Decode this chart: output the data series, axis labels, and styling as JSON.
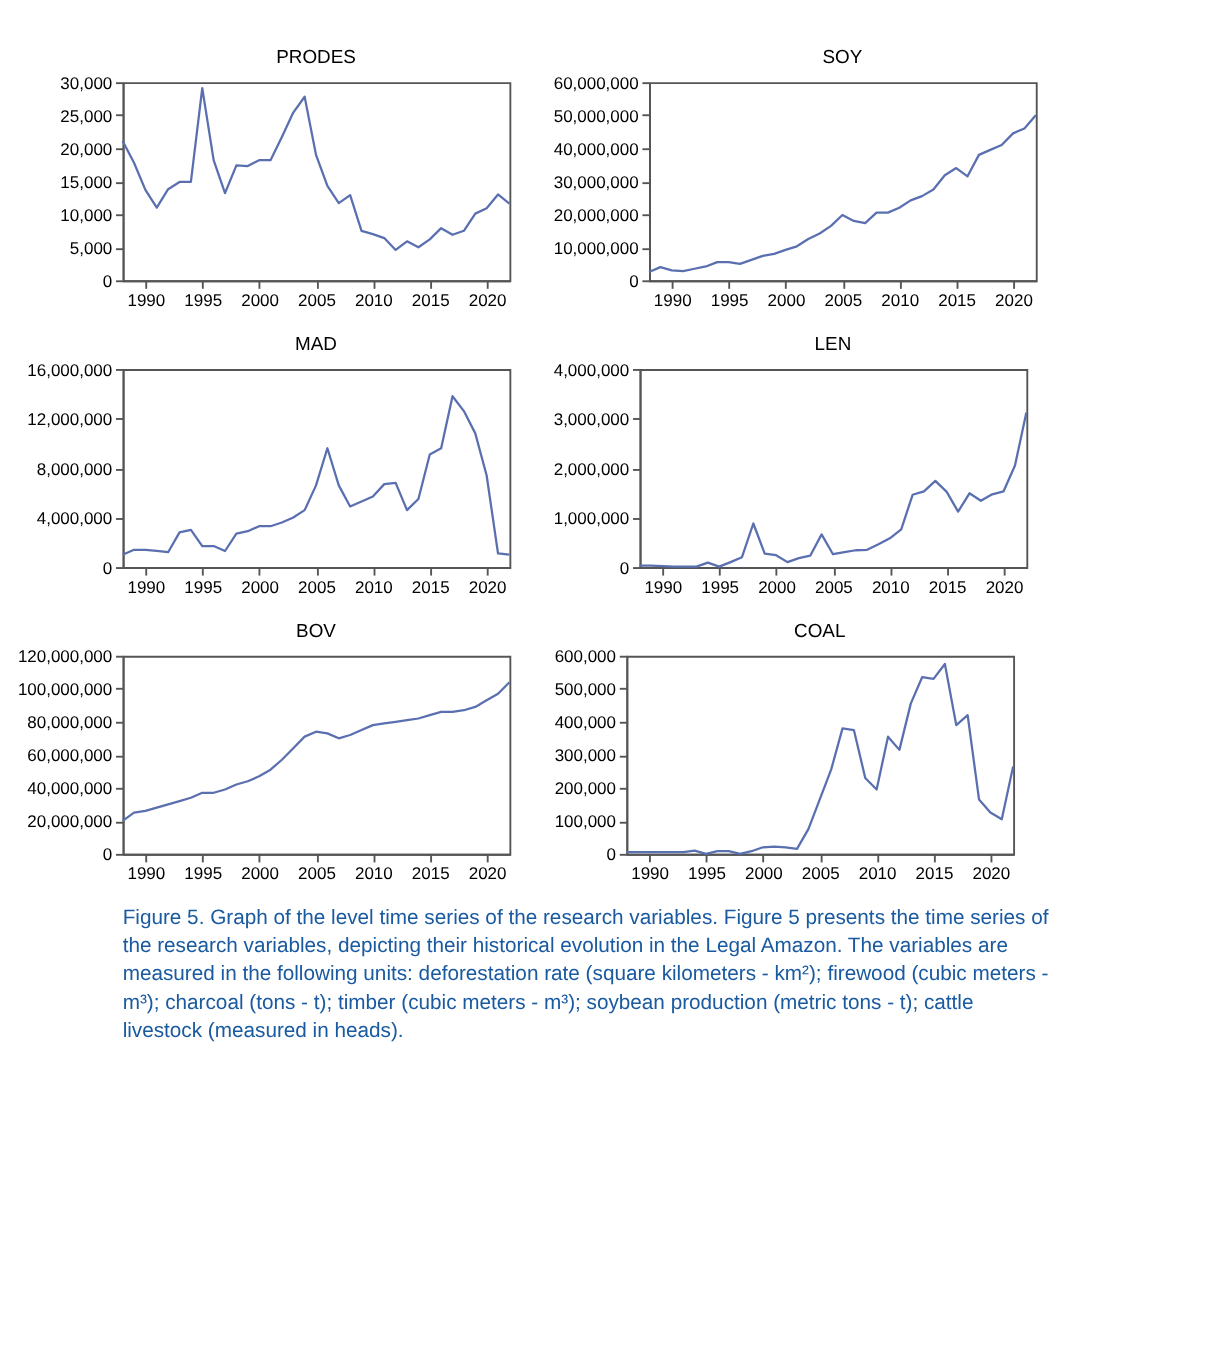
{
  "chart_data": [
    {
      "type": "line",
      "title": "PRODES",
      "color": "#5a6fb0",
      "x": [
        1988,
        1989,
        1990,
        1991,
        1992,
        1993,
        1994,
        1995,
        1996,
        1997,
        1998,
        1999,
        2000,
        2001,
        2002,
        2003,
        2004,
        2005,
        2006,
        2007,
        2008,
        2009,
        2010,
        2011,
        2012,
        2013,
        2014,
        2015,
        2016,
        2017,
        2018,
        2019,
        2020,
        2021,
        2022
      ],
      "values": [
        21100,
        17800,
        13700,
        11000,
        13800,
        14900,
        14900,
        29100,
        18200,
        13200,
        17400,
        17300,
        18200,
        18200,
        21700,
        25400,
        27800,
        19000,
        14300,
        11700,
        12900,
        7500,
        7000,
        6400,
        4600,
        5900,
        5000,
        6200,
        7900,
        6900,
        7500,
        10100,
        10900,
        13000,
        11600
      ],
      "xlim": [
        1988,
        2022
      ],
      "xticks": [
        1990,
        1995,
        2000,
        2005,
        2010,
        2015,
        2020
      ],
      "ylim": [
        0,
        30000
      ],
      "yticks": [
        {
          "value": 0,
          "label": "0"
        },
        {
          "value": 5000,
          "label": "5,000"
        },
        {
          "value": 10000,
          "label": "10,000"
        },
        {
          "value": 15000,
          "label": "15,000"
        },
        {
          "value": 20000,
          "label": "20,000"
        },
        {
          "value": 25000,
          "label": "25,000"
        },
        {
          "value": 30000,
          "label": "30,000"
        }
      ],
      "grid": false
    },
    {
      "type": "line",
      "title": "SOY",
      "color": "#5a6fb0",
      "x": [
        1988,
        1989,
        1990,
        1991,
        1992,
        1993,
        1994,
        1995,
        1996,
        1997,
        1998,
        1999,
        2000,
        2001,
        2002,
        2003,
        2004,
        2005,
        2006,
        2007,
        2008,
        2009,
        2010,
        2011,
        2012,
        2013,
        2014,
        2015,
        2016,
        2017,
        2018,
        2019,
        2020,
        2021,
        2022
      ],
      "values": [
        2500000,
        4000000,
        3000000,
        2800000,
        3500000,
        4200000,
        5500000,
        5500000,
        5000000,
        6200000,
        7400000,
        8000000,
        9200000,
        10300000,
        12500000,
        14200000,
        16500000,
        19800000,
        18000000,
        17300000,
        20500000,
        20500000,
        22000000,
        24200000,
        25500000,
        27500000,
        31800000,
        34000000,
        31500000,
        38000000,
        39500000,
        41000000,
        44500000,
        46000000,
        50000000
      ],
      "xlim": [
        1988,
        2022
      ],
      "xticks": [
        1990,
        1995,
        2000,
        2005,
        2010,
        2015,
        2020
      ],
      "ylim": [
        0,
        60000000
      ],
      "yticks": [
        {
          "value": 0,
          "label": "0"
        },
        {
          "value": 10000000,
          "label": "10,000,000"
        },
        {
          "value": 20000000,
          "label": "20,000,000"
        },
        {
          "value": 30000000,
          "label": "30,000,000"
        },
        {
          "value": 40000000,
          "label": "40,000,000"
        },
        {
          "value": 50000000,
          "label": "50,000,000"
        },
        {
          "value": 60000000,
          "label": "60,000,000"
        }
      ],
      "grid": false
    },
    {
      "type": "line",
      "title": "MAD",
      "color": "#5a6fb0",
      "x": [
        1988,
        1989,
        1990,
        1991,
        1992,
        1993,
        1994,
        1995,
        1996,
        1997,
        1998,
        1999,
        2000,
        2001,
        2002,
        2003,
        2004,
        2005,
        2006,
        2007,
        2008,
        2009,
        2010,
        2011,
        2012,
        2013,
        2014,
        2015,
        2016,
        2017,
        2018,
        2019,
        2020,
        2021,
        2022
      ],
      "values": [
        1000000,
        1400000,
        1400000,
        1300000,
        1200000,
        2800000,
        3000000,
        1700000,
        1700000,
        1300000,
        2700000,
        2900000,
        3300000,
        3300000,
        3600000,
        4000000,
        4600000,
        6600000,
        9600000,
        6600000,
        4900000,
        5300000,
        5700000,
        6700000,
        6800000,
        4600000,
        5500000,
        9100000,
        9600000,
        13800000,
        12600000,
        10800000,
        7400000,
        1100000,
        1000000
      ],
      "xlim": [
        1988,
        2022
      ],
      "xticks": [
        1990,
        1995,
        2000,
        2005,
        2010,
        2015,
        2020
      ],
      "ylim": [
        0,
        16000000
      ],
      "yticks": [
        {
          "value": 0,
          "label": "0"
        },
        {
          "value": 4000000,
          "label": "4,000,000"
        },
        {
          "value": 8000000,
          "label": "8,000,000"
        },
        {
          "value": 12000000,
          "label": "12,000,000"
        },
        {
          "value": 16000000,
          "label": "16,000,000"
        }
      ],
      "grid": false
    },
    {
      "type": "line",
      "title": "LEN",
      "color": "#5a6fb0",
      "x": [
        1988,
        1989,
        1990,
        1991,
        1992,
        1993,
        1994,
        1995,
        1996,
        1997,
        1998,
        1999,
        2000,
        2001,
        2002,
        2003,
        2004,
        2005,
        2006,
        2007,
        2008,
        2009,
        2010,
        2011,
        2012,
        2013,
        2014,
        2015,
        2016,
        2017,
        2018,
        2019,
        2020,
        2021,
        2022
      ],
      "values": [
        30000,
        30000,
        20000,
        10000,
        10000,
        10000,
        90000,
        10000,
        100000,
        200000,
        880000,
        270000,
        240000,
        100000,
        180000,
        230000,
        660000,
        260000,
        300000,
        340000,
        350000,
        460000,
        580000,
        760000,
        1460000,
        1530000,
        1740000,
        1520000,
        1120000,
        1490000,
        1340000,
        1470000,
        1530000,
        2050000,
        3120000
      ],
      "xlim": [
        1988,
        2022
      ],
      "xticks": [
        1990,
        1995,
        2000,
        2005,
        2010,
        2015,
        2020
      ],
      "ylim": [
        0,
        4000000
      ],
      "yticks": [
        {
          "value": 0,
          "label": "0"
        },
        {
          "value": 1000000,
          "label": "1,000,000"
        },
        {
          "value": 2000000,
          "label": "2,000,000"
        },
        {
          "value": 3000000,
          "label": "3,000,000"
        },
        {
          "value": 4000000,
          "label": "4,000,000"
        }
      ],
      "grid": false
    },
    {
      "type": "line",
      "title": "BOV",
      "color": "#5a6fb0",
      "x": [
        1988,
        1989,
        1990,
        1991,
        1992,
        1993,
        1994,
        1995,
        1996,
        1997,
        1998,
        1999,
        2000,
        2001,
        2002,
        2003,
        2004,
        2005,
        2006,
        2007,
        2008,
        2009,
        2010,
        2011,
        2012,
        2013,
        2014,
        2015,
        2016,
        2017,
        2018,
        2019,
        2020,
        2021,
        2022
      ],
      "values": [
        20000000,
        25000000,
        26000000,
        28000000,
        30000000,
        32000000,
        34000000,
        37000000,
        37000000,
        39000000,
        42000000,
        44000000,
        47000000,
        51000000,
        57000000,
        64000000,
        71000000,
        74000000,
        73000000,
        70000000,
        72000000,
        75000000,
        78000000,
        79000000,
        80000000,
        81000000,
        82000000,
        84000000,
        86000000,
        86000000,
        87000000,
        89000000,
        93000000,
        97000000,
        104000000
      ],
      "xlim": [
        1988,
        2022
      ],
      "xticks": [
        1990,
        1995,
        2000,
        2005,
        2010,
        2015,
        2020
      ],
      "ylim": [
        0,
        120000000
      ],
      "yticks": [
        {
          "value": 0,
          "label": "0"
        },
        {
          "value": 20000000,
          "label": "20,000,000"
        },
        {
          "value": 40000000,
          "label": "40,000,000"
        },
        {
          "value": 60000000,
          "label": "60,000,000"
        },
        {
          "value": 80000000,
          "label": "80,000,000"
        },
        {
          "value": 100000000,
          "label": "100,000,000"
        },
        {
          "value": 120000000,
          "label": "120,000,000"
        }
      ],
      "grid": false
    },
    {
      "type": "line",
      "title": "COAL",
      "color": "#5a6fb0",
      "x": [
        1988,
        1989,
        1990,
        1991,
        1992,
        1993,
        1994,
        1995,
        1996,
        1997,
        1998,
        1999,
        2000,
        2001,
        2002,
        2003,
        2004,
        2005,
        2006,
        2007,
        2008,
        2009,
        2010,
        2011,
        2012,
        2013,
        2014,
        2015,
        2016,
        2017,
        2018,
        2019,
        2020,
        2021,
        2022
      ],
      "values": [
        5000,
        5000,
        5000,
        5000,
        5000,
        5000,
        10000,
        0,
        8000,
        8000,
        0,
        8000,
        20000,
        22000,
        20000,
        15000,
        75000,
        165000,
        255000,
        380000,
        375000,
        230000,
        195000,
        355000,
        315000,
        455000,
        535000,
        530000,
        575000,
        390000,
        420000,
        165000,
        125000,
        105000,
        265000
      ],
      "xlim": [
        1988,
        2022
      ],
      "xticks": [
        1990,
        1995,
        2000,
        2005,
        2010,
        2015,
        2020
      ],
      "ylim": [
        0,
        600000
      ],
      "yticks": [
        {
          "value": 0,
          "label": "0"
        },
        {
          "value": 100000,
          "label": "100,000"
        },
        {
          "value": 200000,
          "label": "200,000"
        },
        {
          "value": 300000,
          "label": "300,000"
        },
        {
          "value": 400000,
          "label": "400,000"
        },
        {
          "value": 500000,
          "label": "500,000"
        },
        {
          "value": 600000,
          "label": "600,000"
        }
      ],
      "grid": false,
      "annotations": [
        "Figure 5. Graph of the level time series of the research variables. Figure 5 presents the time series of the research variables, depicting their historical evolution in the Legal Amazon. The variables are measured in the following units: deforestation rate (square kilometers - km²); firewood (cubic meters - m³); charcoal (tons - t); timber (cubic meters - m³); soybean production (metric tons - t); cattle livestock (measured in heads)."
      ]
    }
  ]
}
